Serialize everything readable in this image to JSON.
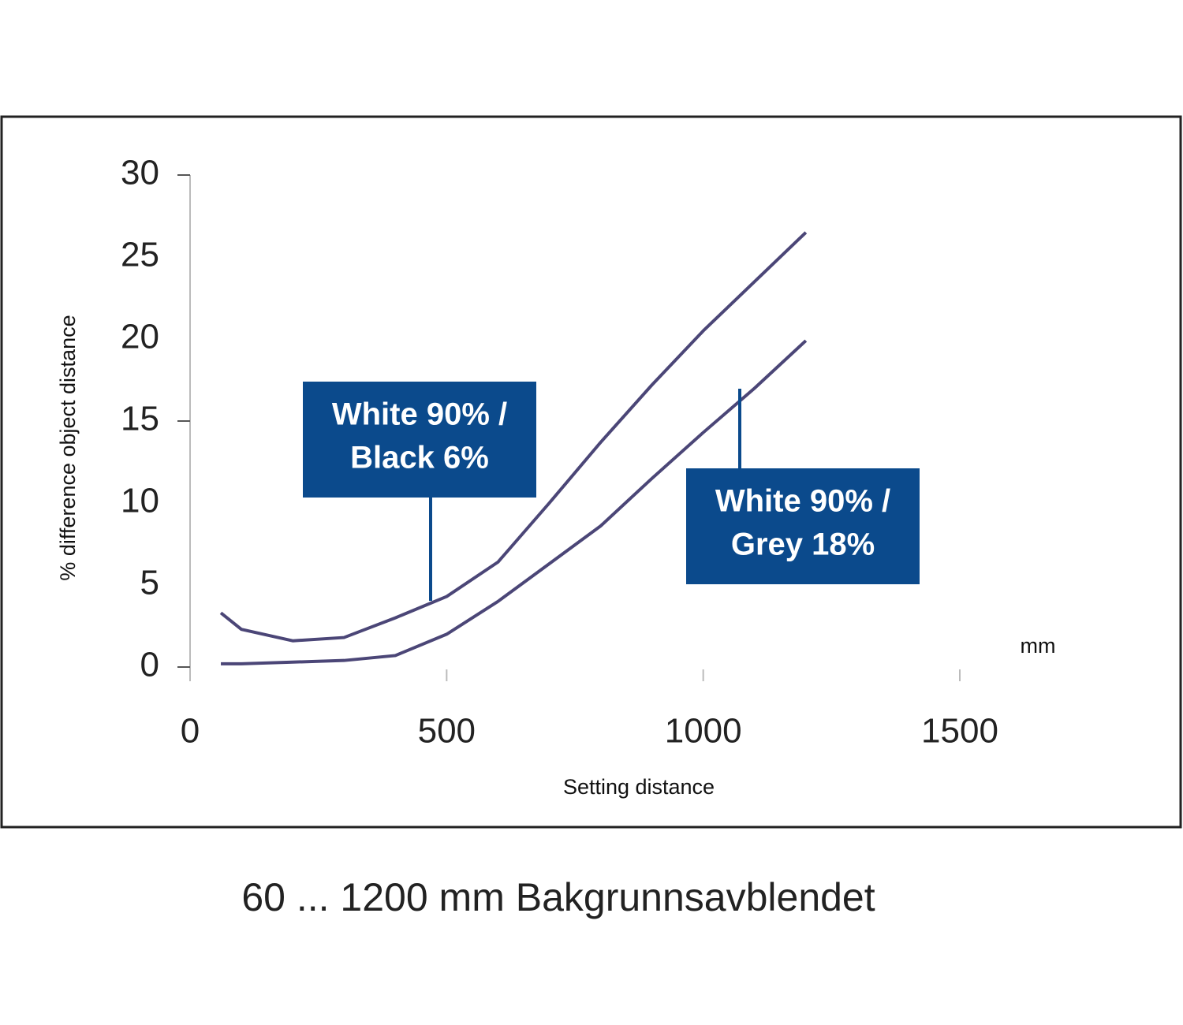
{
  "chart_data": {
    "type": "line",
    "y_label": "% difference object distance",
    "x_label": "Setting distance",
    "x_unit": "mm",
    "caption": "60 ... 1200 mm  Bakgrunnsavblendet",
    "x": [
      60,
      100,
      200,
      300,
      400,
      500,
      600,
      700,
      800,
      900,
      1000,
      1100,
      1200
    ],
    "series": [
      {
        "name": "White 90% / Black 6%",
        "color": "#4b4677",
        "values": [
          3.3,
          2.3,
          1.6,
          1.8,
          3.0,
          4.3,
          6.4,
          10.0,
          13.7,
          17.2,
          20.5,
          23.5,
          26.5
        ]
      },
      {
        "name": "White 90% / Grey 18%",
        "color": "#4b4677",
        "values": [
          0.2,
          0.2,
          0.3,
          0.4,
          0.7,
          2.0,
          4.0,
          6.3,
          8.6,
          11.5,
          14.3,
          17.0,
          19.9
        ]
      }
    ],
    "annotations": [
      {
        "lines": [
          "White 90% /",
          "Black 6%"
        ],
        "color": "#0b4a8c"
      },
      {
        "lines": [
          "White 90% /",
          "Grey 18%"
        ],
        "color": "#0b4a8c"
      }
    ],
    "xlim": [
      0,
      1500
    ],
    "xticks": [
      0,
      500,
      1000,
      1500
    ],
    "ylim": [
      0,
      30
    ],
    "yticks": [
      0,
      5,
      10,
      15,
      20,
      25,
      30
    ]
  }
}
